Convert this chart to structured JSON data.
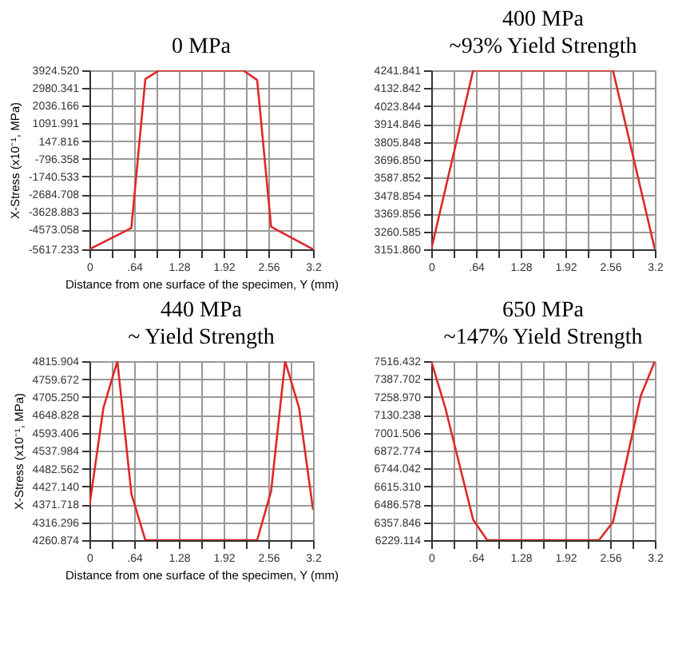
{
  "chart_data": [
    {
      "type": "line",
      "title": "0 MPa",
      "xlabel": "Distance from one surface of the specimen, Y (mm)",
      "ylabel": "X-Stress (x10⁻¹, MPa)",
      "grid": true,
      "marker": "none",
      "line_style": "solid",
      "x": [
        0,
        0.6,
        0.8,
        1.0,
        2.2,
        2.4,
        2.6,
        3.2
      ],
      "series": [
        {
          "color": "#e02828",
          "values": [
            -5617.233,
            -4480,
            3460,
            3924.52,
            3924.52,
            3410,
            -4420,
            -5617.233
          ]
        }
      ],
      "xlim": [
        0,
        3.2
      ],
      "xticks": [
        0,
        {
          "value": 0.32,
          "label": null
        },
        {
          "value": 0.64,
          "label": ".64"
        },
        {
          "value": 0.96,
          "label": null
        },
        1.28,
        {
          "value": 1.6,
          "label": null
        },
        1.92,
        {
          "value": 2.24,
          "label": null
        },
        2.56,
        {
          "value": 2.88,
          "label": null
        },
        3.2
      ],
      "ylim": [
        -5617.233,
        3924.52
      ],
      "yticks": [
        -5617.233,
        -4573.058,
        -3628.883,
        -2684.708,
        -1740.533,
        -796.358,
        147.816,
        1091.991,
        2036.166,
        2980.341,
        {
          "value": 3924.52,
          "label": "3924.520"
        }
      ]
    },
    {
      "type": "line",
      "title": "400 MPa",
      "subtitle": "~93% Yield Strength",
      "grid": true,
      "marker": "none",
      "line_style": "solid",
      "x": [
        0,
        0.6,
        2.6,
        3.2
      ],
      "series": [
        {
          "color": "#e02828",
          "values": [
            3151.86,
            4241.841,
            4241.841,
            3151.86
          ]
        }
      ],
      "xlim": [
        0,
        3.2
      ],
      "xticks": [
        0,
        {
          "value": 0.32,
          "label": null
        },
        {
          "value": 0.64,
          "label": ".64"
        },
        {
          "value": 0.96,
          "label": null
        },
        1.28,
        {
          "value": 1.6,
          "label": null
        },
        1.92,
        {
          "value": 2.24,
          "label": null
        },
        2.56,
        {
          "value": 2.88,
          "label": null
        },
        3.2
      ],
      "ylim": [
        3151.86,
        4241.841
      ],
      "yticks": [
        {
          "value": 3151.86,
          "label": "3151.860"
        },
        3260.585,
        3369.856,
        3478.854,
        3587.852,
        {
          "value": 3696.85,
          "label": "3696.850"
        },
        3805.848,
        3914.846,
        4023.844,
        4132.842,
        4241.841
      ]
    },
    {
      "type": "line",
      "title": "440 MPa",
      "subtitle": "~ Yield Strength",
      "xlabel": "Distance from one surface of the specimen, Y (mm)",
      "ylabel": "X-Stress (x10⁻¹, MPa)",
      "grid": true,
      "marker": "none",
      "line_style": "solid",
      "x": [
        0,
        0.2,
        0.4,
        0.6,
        0.8,
        2.4,
        2.6,
        2.8,
        3.0,
        3.2
      ],
      "series": [
        {
          "color": "#e02828",
          "values": [
            4367,
            4671,
            4815.904,
            4405,
            4260.874,
            4260.874,
            4413,
            4815.904,
            4671,
            4355
          ]
        }
      ],
      "xlim": [
        0,
        3.2
      ],
      "xticks": [
        0,
        {
          "value": 0.32,
          "label": null
        },
        {
          "value": 0.64,
          "label": ".64"
        },
        {
          "value": 0.96,
          "label": null
        },
        1.28,
        {
          "value": 1.6,
          "label": null
        },
        1.92,
        {
          "value": 2.24,
          "label": null
        },
        2.56,
        {
          "value": 2.88,
          "label": null
        },
        3.2
      ],
      "ylim": [
        4260.874,
        4815.904
      ],
      "yticks": [
        4260.874,
        4316.296,
        4371.718,
        {
          "value": 4427.14,
          "label": "4427.140"
        },
        4482.562,
        4537.984,
        4593.406,
        4648.828,
        {
          "value": 4705.25,
          "label": "4705.250"
        },
        4759.672,
        4815.904
      ]
    },
    {
      "type": "line",
      "title": "650 MPa",
      "subtitle": "~147% Yield Strength",
      "grid": true,
      "marker": "none",
      "line_style": "solid",
      "x": [
        0,
        0.2,
        0.6,
        0.8,
        2.4,
        2.6,
        3.0,
        3.2
      ],
      "series": [
        {
          "color": "#e02828",
          "values": [
            7516.432,
            7183,
            6376,
            6229.114,
            6229.114,
            6359,
            7269,
            7516.432
          ]
        }
      ],
      "xlim": [
        0,
        3.2
      ],
      "xticks": [
        0,
        {
          "value": 0.32,
          "label": null
        },
        {
          "value": 0.64,
          "label": ".64"
        },
        {
          "value": 0.96,
          "label": null
        },
        1.28,
        {
          "value": 1.6,
          "label": null
        },
        1.92,
        {
          "value": 2.24,
          "label": null
        },
        2.56,
        {
          "value": 2.88,
          "label": null
        },
        3.2
      ],
      "ylim": [
        6229.114,
        7516.432
      ],
      "yticks": [
        6229.114,
        6357.846,
        6486.578,
        {
          "value": 6615.31,
          "label": "6615.310"
        },
        6744.042,
        6872.774,
        7001.506,
        7130.238,
        {
          "value": 7258.97,
          "label": "7258.970"
        },
        7387.702,
        7516.432
      ]
    }
  ]
}
